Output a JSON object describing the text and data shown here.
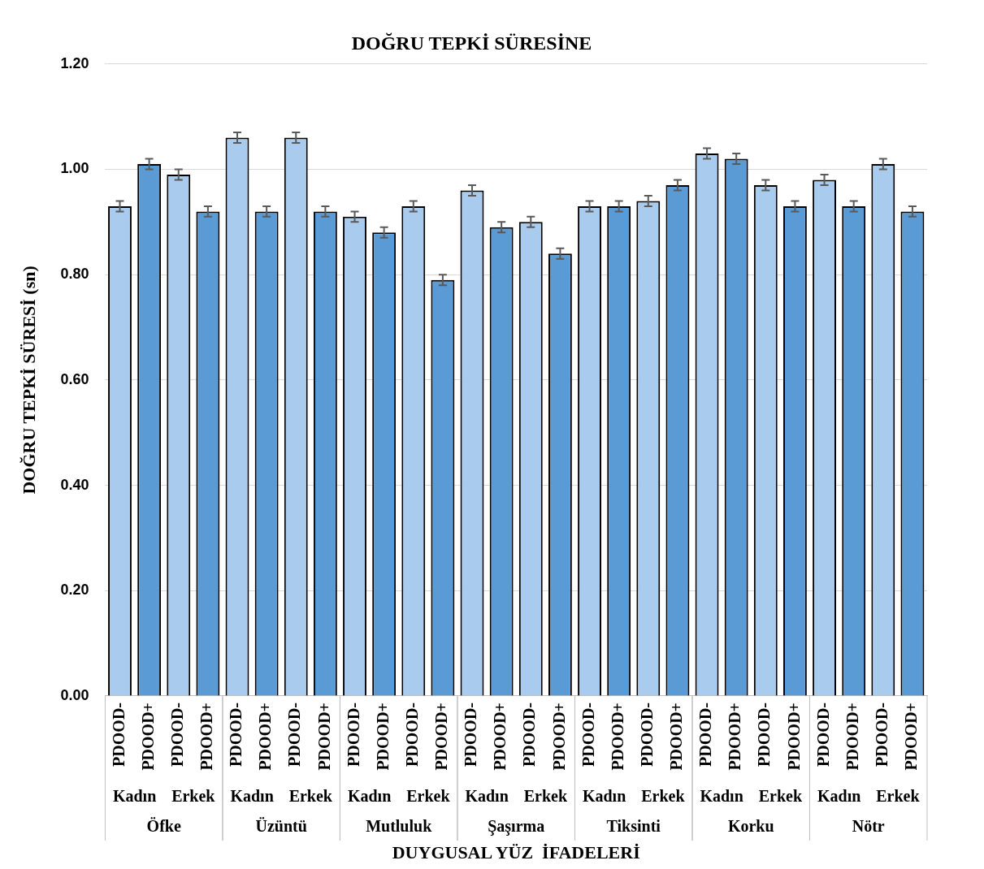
{
  "chart_data": {
    "type": "bar",
    "title": "DOĞRU TEPKİ SÜRESİNE",
    "xlabel": "DUYGUSAL YÜZ  İFADELERİ",
    "ylabel": "DOĞRU TEPKİ SÜRESİ (sn)",
    "categories": [
      "PDOOD-",
      "PDOOD+",
      "PDOOD-",
      "PDOOD+",
      "PDOOD-",
      "PDOOD+",
      "PDOOD-",
      "PDOOD+",
      "PDOOD-",
      "PDOOD+",
      "PDOOD-",
      "PDOOD+",
      "PDOOD-",
      "PDOOD+",
      "PDOOD-",
      "PDOOD+",
      "PDOOD-",
      "PDOOD+",
      "PDOOD-",
      "PDOOD+",
      "PDOOD-",
      "PDOOD+",
      "PDOOD-",
      "PDOOD+",
      "PDOOD-",
      "PDOOD+",
      "PDOOD-",
      "PDOOD+"
    ],
    "values": [
      0.93,
      1.01,
      0.99,
      0.92,
      1.06,
      0.92,
      1.06,
      0.92,
      0.91,
      0.88,
      0.93,
      0.79,
      0.96,
      0.89,
      0.9,
      0.84,
      0.93,
      0.93,
      0.94,
      0.97,
      1.03,
      1.02,
      0.97,
      0.93,
      0.98,
      0.93,
      1.01,
      0.92
    ],
    "errors": [
      0.01,
      0.01,
      0.01,
      0.01,
      0.01,
      0.01,
      0.01,
      0.01,
      0.01,
      0.01,
      0.01,
      0.01,
      0.01,
      0.01,
      0.01,
      0.01,
      0.01,
      0.01,
      0.01,
      0.01,
      0.01,
      0.01,
      0.01,
      0.01,
      0.01,
      0.01,
      0.01,
      0.01
    ],
    "colors": [
      "#a9cbee",
      "#5b9bd5",
      "#a9cbee",
      "#5b9bd5",
      "#a9cbee",
      "#5b9bd5",
      "#a9cbee",
      "#5b9bd5",
      "#a9cbee",
      "#5b9bd5",
      "#a9cbee",
      "#5b9bd5",
      "#a9cbee",
      "#5b9bd5",
      "#a9cbee",
      "#5b9bd5",
      "#a9cbee",
      "#5b9bd5",
      "#a9cbee",
      "#5b9bd5",
      "#a9cbee",
      "#5b9bd5",
      "#a9cbee",
      "#5b9bd5",
      "#a9cbee",
      "#5b9bd5",
      "#a9cbee",
      "#5b9bd5"
    ],
    "ylim": [
      0,
      1.2
    ],
    "yticks": [
      {
        "value": 0,
        "label": "0.00"
      },
      {
        "value": 0.2,
        "label": "0.20"
      },
      {
        "value": 0.4,
        "label": "0.40"
      },
      {
        "value": 0.6,
        "label": "0.60"
      },
      {
        "value": 0.8,
        "label": "0.80"
      },
      {
        "value": 1,
        "label": "1.00"
      },
      {
        "value": 1.2,
        "label": "1.20"
      }
    ],
    "grid": "y",
    "legend": false,
    "annotations": [
      "Kadın",
      "Erkek",
      "Kadın",
      "Erkek",
      "Kadın",
      "Erkek",
      "Kadın",
      "Erkek",
      "Kadın",
      "Erkek",
      "Kadın",
      "Erkek",
      "Kadın",
      "Erkek",
      "Öfke",
      "Üzüntü",
      "Mutluluk",
      "Şaşırma",
      "Tiksinti",
      "Korku",
      "Nötr"
    ]
  }
}
